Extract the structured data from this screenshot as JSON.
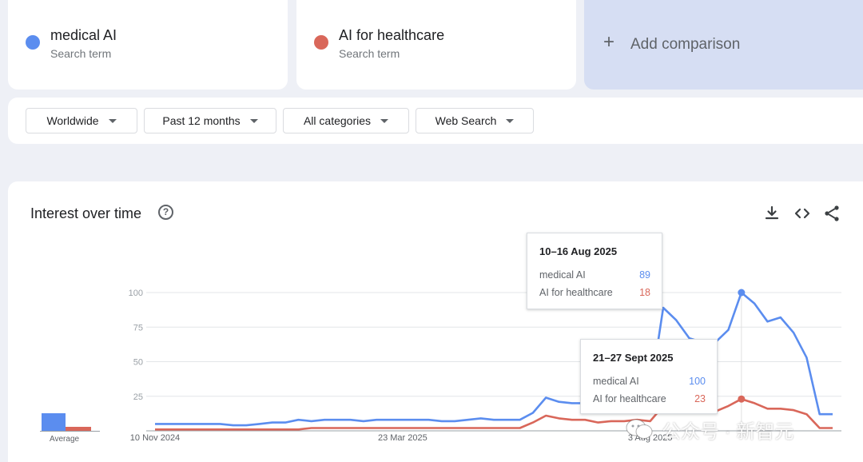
{
  "terms": [
    {
      "name": "medical AI",
      "sub": "Search term",
      "color": "#5b8def"
    },
    {
      "name": "AI for healthcare",
      "sub": "Search term",
      "color": "#d9675a"
    }
  ],
  "add_comparison": {
    "icon": "+",
    "label": "Add comparison"
  },
  "filters": {
    "geo": "Worldwide",
    "time": "Past 12 months",
    "category": "All categories",
    "property": "Web Search"
  },
  "chart": {
    "title": "Interest over time",
    "help_glyph": "?",
    "average_label": "Average",
    "tooltips": [
      {
        "date": "10–16 Aug 2025",
        "rows": [
          {
            "label": "medical AI",
            "value": "89"
          },
          {
            "label": "AI for healthcare",
            "value": "18"
          }
        ]
      },
      {
        "date": "21–27 Sept 2025",
        "rows": [
          {
            "label": "medical AI",
            "value": "100"
          },
          {
            "label": "AI for healthcare",
            "value": "23"
          }
        ]
      }
    ]
  },
  "chart_data": {
    "type": "line",
    "title": "Interest over time",
    "ylim": [
      0,
      100
    ],
    "y_ticks": [
      100,
      75,
      50,
      25
    ],
    "x_tick_labels": [
      "10 Nov 2024",
      "23 Mar 2025",
      "3 Aug 2025"
    ],
    "x_dates": [
      "2024-11-10",
      "2024-11-17",
      "2024-11-24",
      "2024-12-01",
      "2024-12-08",
      "2024-12-15",
      "2024-12-22",
      "2024-12-29",
      "2025-01-05",
      "2025-01-12",
      "2025-01-19",
      "2025-01-26",
      "2025-02-02",
      "2025-02-09",
      "2025-02-16",
      "2025-02-23",
      "2025-03-02",
      "2025-03-09",
      "2025-03-16",
      "2025-03-23",
      "2025-03-30",
      "2025-04-06",
      "2025-04-13",
      "2025-04-20",
      "2025-04-27",
      "2025-05-04",
      "2025-05-11",
      "2025-05-18",
      "2025-05-25",
      "2025-06-01",
      "2025-06-08",
      "2025-06-15",
      "2025-06-22",
      "2025-06-29",
      "2025-07-06",
      "2025-07-13",
      "2025-07-20",
      "2025-07-27",
      "2025-08-03",
      "2025-08-10",
      "2025-08-17",
      "2025-08-24",
      "2025-08-31",
      "2025-09-07",
      "2025-09-14",
      "2025-09-21",
      "2025-09-28",
      "2025-10-05",
      "2025-10-12",
      "2025-10-19",
      "2025-10-26",
      "2025-11-02",
      "2025-11-09"
    ],
    "series": [
      {
        "name": "medical AI",
        "color": "#5b8def",
        "average": 26,
        "values": [
          5,
          5,
          5,
          5,
          5,
          5,
          4,
          4,
          5,
          6,
          6,
          8,
          7,
          8,
          8,
          8,
          7,
          8,
          8,
          8,
          8,
          8,
          7,
          7,
          8,
          9,
          8,
          8,
          8,
          13,
          24,
          21,
          20,
          20,
          17,
          21,
          24,
          17,
          27,
          89,
          80,
          67,
          64,
          64,
          73,
          100,
          92,
          79,
          82,
          71,
          53,
          12,
          12
        ]
      },
      {
        "name": "AI for healthcare",
        "color": "#d9675a",
        "average": 6,
        "values": [
          1,
          1,
          1,
          1,
          1,
          1,
          1,
          1,
          1,
          1,
          1,
          1,
          2,
          2,
          2,
          2,
          2,
          2,
          2,
          2,
          2,
          2,
          2,
          2,
          2,
          2,
          2,
          2,
          2,
          6,
          11,
          9,
          8,
          8,
          6,
          7,
          7,
          8,
          7,
          18,
          17,
          16,
          14,
          14,
          18,
          23,
          20,
          16,
          16,
          15,
          12,
          2,
          2
        ]
      }
    ]
  },
  "watermark": {
    "text": "公众号 · 新智元",
    "icon": "wechat-icon"
  }
}
